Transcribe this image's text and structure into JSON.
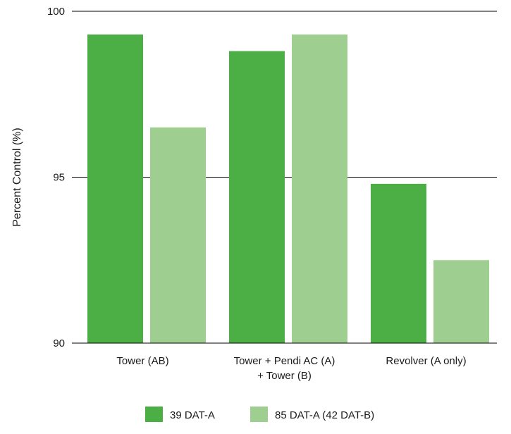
{
  "chart_data": {
    "type": "bar",
    "title": "",
    "xlabel": "",
    "ylabel": "Percent Control (%)",
    "ylim": [
      90,
      100
    ],
    "yticks": [
      90,
      95,
      100
    ],
    "grid": true,
    "legend_position": "bottom",
    "categories": [
      [
        "Tower (AB)"
      ],
      [
        "Tower + Pendi AC (A)",
        "+ Tower (B)"
      ],
      [
        "Revolver (A only)"
      ]
    ],
    "series": [
      {
        "name": "39 DAT-A",
        "color": "#4caf45",
        "values": [
          99.3,
          98.8,
          94.8
        ]
      },
      {
        "name": "85 DAT-A (42 DAT-B)",
        "color": "#9ecf91",
        "values": [
          96.5,
          99.3,
          92.5
        ]
      }
    ]
  }
}
